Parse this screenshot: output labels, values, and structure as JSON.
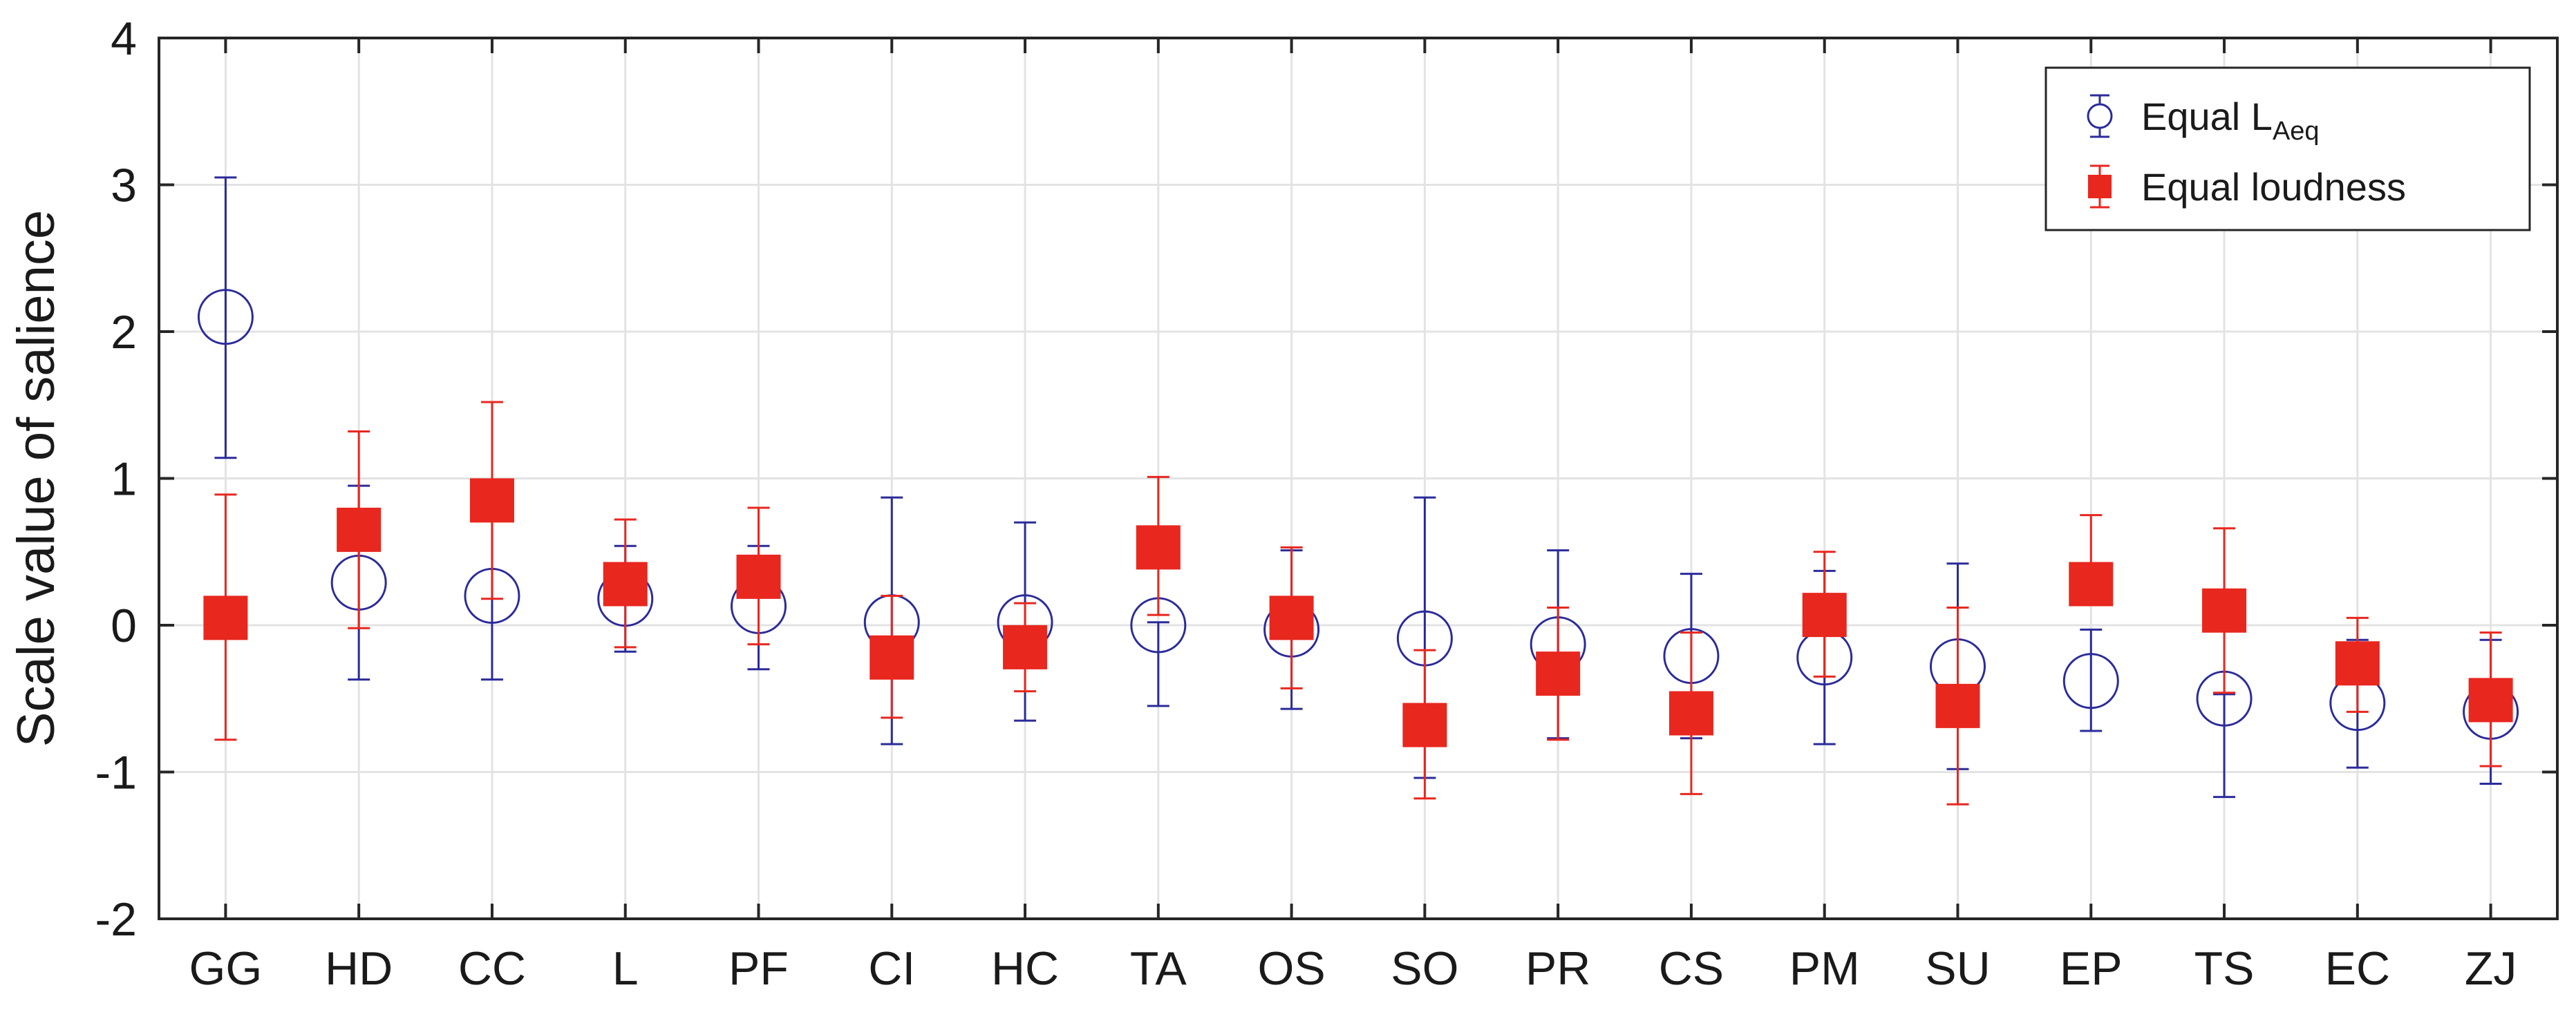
{
  "chart_data": {
    "type": "scatter",
    "title": "",
    "xlabel": "",
    "ylabel": "Scale value of salience",
    "ylim": [
      -2,
      4
    ],
    "yticks": [
      "-2",
      "-1",
      "0",
      "1",
      "2",
      "3",
      "4"
    ],
    "grid": true,
    "legend_position": "top-right",
    "categories": [
      "GG",
      "HD",
      "CC",
      "L",
      "PF",
      "CI",
      "HC",
      "TA",
      "OS",
      "SO",
      "PR",
      "CS",
      "PM",
      "SU",
      "EP",
      "TS",
      "EC",
      "ZJ"
    ],
    "series": [
      {
        "name": "Equal L_Aeq",
        "legend_main": "Equal L",
        "legend_sub": "Aeq",
        "marker": "open-circle",
        "color": "#2b2b9a",
        "values": [
          2.1,
          0.29,
          0.2,
          0.18,
          0.13,
          0.02,
          0.02,
          0.0,
          -0.03,
          -0.09,
          -0.13,
          -0.21,
          -0.22,
          -0.28,
          -0.38,
          -0.5,
          -0.53,
          -0.59
        ],
        "lower": [
          1.14,
          -0.37,
          -0.37,
          -0.18,
          -0.3,
          -0.81,
          -0.65,
          -0.55,
          -0.57,
          -1.04,
          -0.77,
          -0.77,
          -0.81,
          -0.98,
          -0.72,
          -1.17,
          -0.97,
          -1.08
        ],
        "upper": [
          3.05,
          0.95,
          0.77,
          0.54,
          0.54,
          0.87,
          0.7,
          0.02,
          0.51,
          0.87,
          0.51,
          0.35,
          0.37,
          0.42,
          -0.03,
          -0.47,
          -0.1,
          -0.1
        ]
      },
      {
        "name": "Equal loudness",
        "legend_main": "Equal loudness",
        "marker": "filled-square",
        "color": "#e8271f",
        "values": [
          0.05,
          0.65,
          0.85,
          0.28,
          0.33,
          -0.22,
          -0.15,
          0.53,
          0.05,
          -0.68,
          -0.33,
          -0.6,
          0.07,
          -0.55,
          0.28,
          0.1,
          -0.26,
          -0.51
        ],
        "lower": [
          -0.78,
          -0.02,
          0.18,
          -0.15,
          -0.13,
          -0.63,
          -0.45,
          0.07,
          -0.43,
          -1.18,
          -0.78,
          -1.15,
          -0.35,
          -1.22,
          0.15,
          -0.46,
          -0.59,
          -0.96
        ],
        "upper": [
          0.89,
          1.32,
          1.52,
          0.72,
          0.8,
          0.2,
          0.15,
          1.01,
          0.53,
          -0.17,
          0.12,
          -0.05,
          0.5,
          0.12,
          0.75,
          0.66,
          0.05,
          -0.05
        ]
      }
    ]
  }
}
